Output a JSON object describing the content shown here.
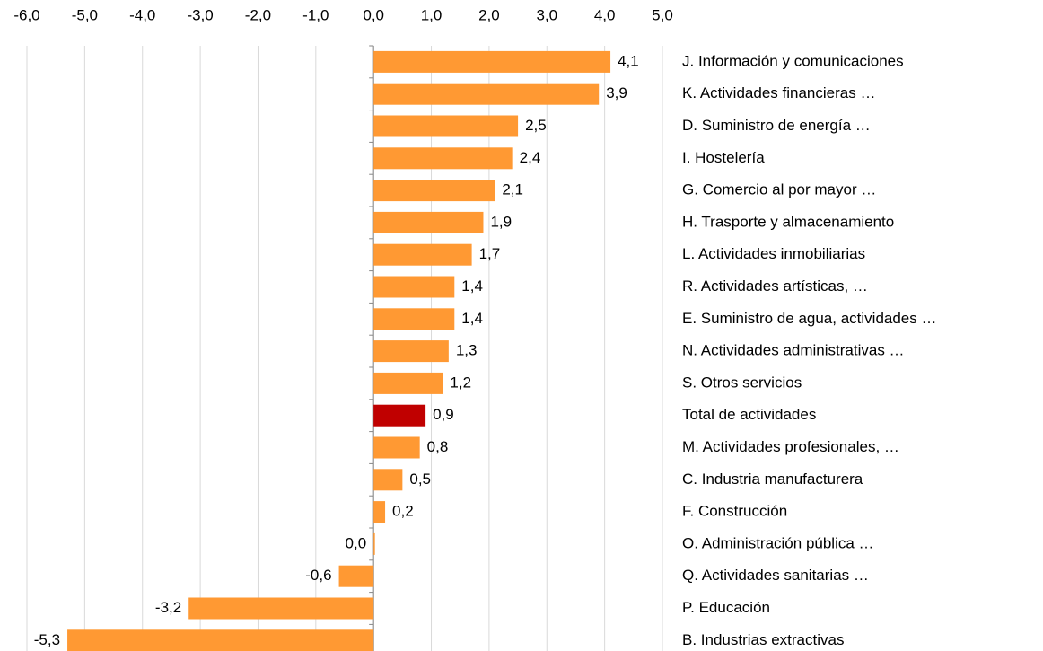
{
  "chart_data": {
    "type": "barh",
    "categories": [
      "J. Información y comunicaciones",
      "K. Actividades  financieras …",
      "D. Suministro de energía …",
      "I. Hostelería",
      "G. Comercio al por mayor …",
      "H. Trasporte y almacenamiento",
      "L. Actividades inmobiliarias",
      "R. Actividades artísticas, …",
      "E. Suministro de agua, actividades …",
      "N. Actividades administrativas …",
      "S. Otros servicios",
      "Total de actividades",
      "M. Actividades  profesionales, …",
      "C. Industria manufacturera",
      "F. Construcción",
      "O. Administración pública …",
      "Q. Actividades sanitarias …",
      "P. Educación",
      "B. Industrias extractivas"
    ],
    "values": [
      4.1,
      3.9,
      2.5,
      2.4,
      2.1,
      1.9,
      1.7,
      1.4,
      1.4,
      1.3,
      1.2,
      0.9,
      0.8,
      0.5,
      0.2,
      0.0,
      -0.6,
      -3.2,
      -5.3
    ],
    "value_labels": [
      "4,1",
      "3,9",
      "2,5",
      "2,4",
      "2,1",
      "1,9",
      "1,7",
      "1,4",
      "1,4",
      "1,3",
      "1,2",
      "0,9",
      "0,8",
      "0,5",
      "0,2",
      "0,0",
      "-0,6",
      "-3,2",
      "-5,3"
    ],
    "colors": [
      "#ff9933",
      "#ff9933",
      "#ff9933",
      "#ff9933",
      "#ff9933",
      "#ff9933",
      "#ff9933",
      "#ff9933",
      "#ff9933",
      "#ff9933",
      "#ff9933",
      "#c00000",
      "#ff9933",
      "#ff9933",
      "#ff9933",
      "#ff9933",
      "#ff9933",
      "#ff9933",
      "#ff9933"
    ],
    "xlim": [
      -6,
      5
    ],
    "xticks": [
      {
        "value": -6,
        "label": "-6,0"
      },
      {
        "value": -5,
        "label": "-5,0"
      },
      {
        "value": -4,
        "label": "-4,0"
      },
      {
        "value": -3,
        "label": "-3,0"
      },
      {
        "value": -2,
        "label": "-2,0"
      },
      {
        "value": -1,
        "label": "-1,0"
      },
      {
        "value": 0,
        "label": "0,0"
      },
      {
        "value": 1,
        "label": "1,0"
      },
      {
        "value": 2,
        "label": "2,0"
      },
      {
        "value": 3,
        "label": "3,0"
      },
      {
        "value": 4,
        "label": "4,0"
      },
      {
        "value": 5,
        "label": "5,0"
      }
    ],
    "grid": true
  }
}
